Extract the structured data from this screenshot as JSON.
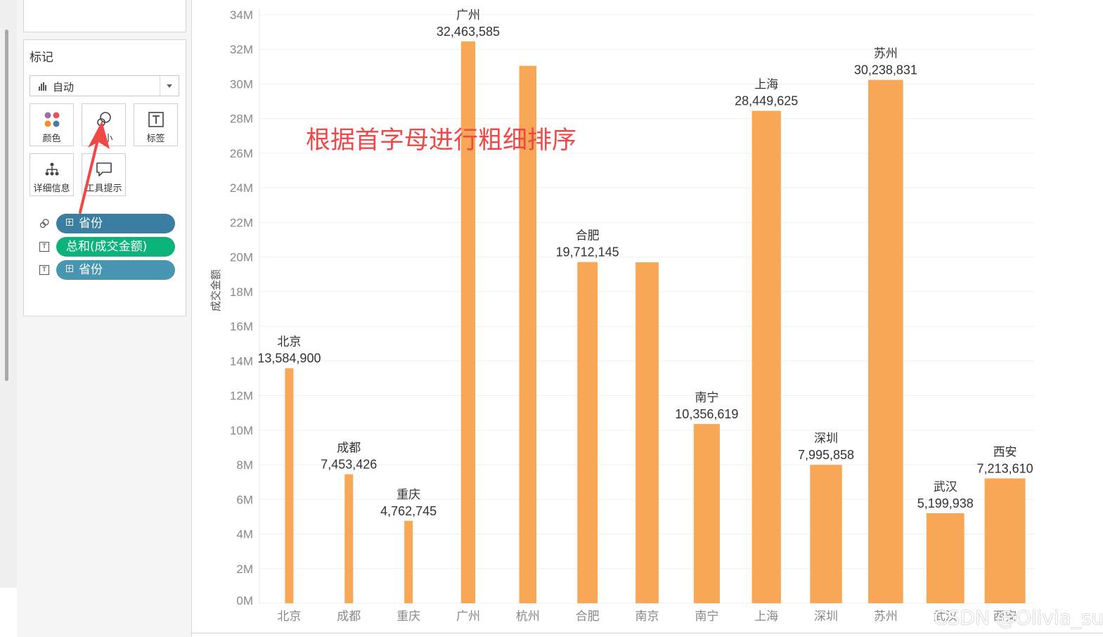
{
  "marks_panel": {
    "title": "标记",
    "mark_type": "自动",
    "buttons": {
      "color": "颜色",
      "size": "大小",
      "label": "标签",
      "detail": "详细信息",
      "tooltip": "工具提示"
    },
    "pills": [
      {
        "label": "省份",
        "color": "#3a7ea1",
        "kind": "size"
      },
      {
        "label": "总和(成交金额)",
        "color": "#0bb37a",
        "kind": "label"
      },
      {
        "label": "省份",
        "color": "#4996b2",
        "kind": "label"
      }
    ]
  },
  "annotation": "根据首字母进行粗细排序",
  "watermark": "CSDN @Olivia_su",
  "colors": {
    "bar": "#f8a756",
    "accent_red": "#f04747",
    "pill_dim": "#3a7ea1",
    "pill_measure": "#0bb37a"
  },
  "chart_data": {
    "type": "bar",
    "ylabel": "成交金额",
    "ylim": [
      0,
      34000000
    ],
    "y_ticks": [
      "0M",
      "2M",
      "4M",
      "6M",
      "8M",
      "10M",
      "12M",
      "14M",
      "16M",
      "18M",
      "20M",
      "22M",
      "24M",
      "26M",
      "28M",
      "30M",
      "32M",
      "34M"
    ],
    "categories": [
      "北京",
      "成都",
      "重庆",
      "广州",
      "杭州",
      "合肥",
      "南京",
      "南宁",
      "上海",
      "深圳",
      "苏州",
      "武汉",
      "西安"
    ],
    "values": [
      13584900,
      7453426,
      4762745,
      32463585,
      31050000,
      19712145,
      19700000,
      10356619,
      28449625,
      7995858,
      30238831,
      5199938,
      7213610
    ],
    "bar_width_rank": [
      3,
      3,
      3,
      5,
      6,
      7,
      8,
      9,
      10,
      11,
      12,
      13,
      14
    ],
    "data_labels": [
      {
        "city": "北京",
        "value": "13,584,900"
      },
      {
        "city": "成都",
        "value": "7,453,426"
      },
      {
        "city": "重庆",
        "value": "4,762,745"
      },
      {
        "city": "广州",
        "value": "32,463,585"
      },
      null,
      {
        "city": "合肥",
        "value": "19,712,145"
      },
      null,
      {
        "city": "南宁",
        "value": "10,356,619"
      },
      {
        "city": "上海",
        "value": "28,449,625"
      },
      {
        "city": "深圳",
        "value": "7,995,858"
      },
      {
        "city": "苏州",
        "value": "30,238,831"
      },
      {
        "city": "武汉",
        "value": "5,199,938"
      },
      {
        "city": "西安",
        "value": "7,213,610"
      }
    ],
    "grid": true
  }
}
